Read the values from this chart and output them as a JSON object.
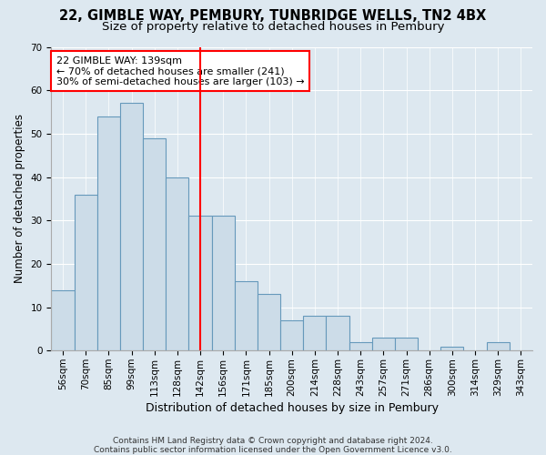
{
  "title1": "22, GIMBLE WAY, PEMBURY, TUNBRIDGE WELLS, TN2 4BX",
  "title2": "Size of property relative to detached houses in Pembury",
  "xlabel": "Distribution of detached houses by size in Pembury",
  "ylabel": "Number of detached properties",
  "bar_labels": [
    "56sqm",
    "70sqm",
    "85sqm",
    "99sqm",
    "113sqm",
    "128sqm",
    "142sqm",
    "156sqm",
    "171sqm",
    "185sqm",
    "200sqm",
    "214sqm",
    "228sqm",
    "243sqm",
    "257sqm",
    "271sqm",
    "286sqm",
    "300sqm",
    "314sqm",
    "329sqm",
    "343sqm"
  ],
  "bar_values": [
    14,
    36,
    54,
    57,
    49,
    40,
    31,
    31,
    16,
    13,
    7,
    8,
    8,
    2,
    3,
    3,
    0,
    1,
    0,
    2,
    0
  ],
  "bar_color": "#ccdce8",
  "bar_edgecolor": "#6699bb",
  "bar_linewidth": 0.8,
  "redline_index": 6,
  "annotation_title": "22 GIMBLE WAY: 139sqm",
  "annotation_line1": "← 70% of detached houses are smaller (241)",
  "annotation_line2": "30% of semi-detached houses are larger (103) →",
  "annotation_box_color": "white",
  "annotation_box_edgecolor": "red",
  "ylim": [
    0,
    70
  ],
  "yticks": [
    0,
    10,
    20,
    30,
    40,
    50,
    60,
    70
  ],
  "bg_color": "#dde8f0",
  "plot_bg_color": "#dde8f0",
  "footer1": "Contains HM Land Registry data © Crown copyright and database right 2024.",
  "footer2": "Contains public sector information licensed under the Open Government Licence v3.0.",
  "title1_fontsize": 10.5,
  "title2_fontsize": 9.5,
  "xlabel_fontsize": 9,
  "ylabel_fontsize": 8.5,
  "tick_fontsize": 7.5,
  "annotation_fontsize": 8,
  "footer_fontsize": 6.5
}
